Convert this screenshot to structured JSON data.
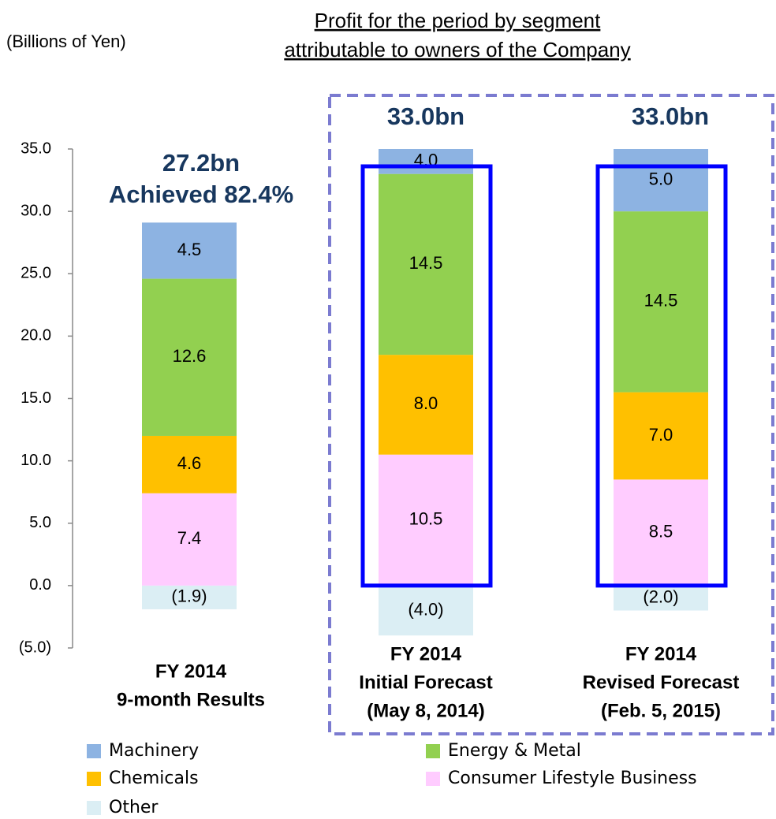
{
  "chart_data": {
    "type": "stacked-bar",
    "title": [
      "Profit for the period by segment",
      "attributable to owners of the Company"
    ],
    "y_axis_label": "(Billions of Yen)",
    "categories": [
      [
        "FY 2014",
        "9-month Results"
      ],
      [
        "FY 2014",
        "Initial Forecast",
        "(May 8, 2014)"
      ],
      [
        "FY 2014",
        "Revised Forecast",
        "(Feb. 5, 2015)"
      ]
    ],
    "series": [
      {
        "name": "Other",
        "color": "#dbeef4",
        "values": [
          -1.9,
          -4.0,
          -2.0
        ],
        "value_labels": [
          "(1.9)",
          "(4.0)",
          "(2.0)"
        ]
      },
      {
        "name": "Consumer Lifestyle Business",
        "color": "#ffccff",
        "values": [
          7.4,
          10.5,
          8.5
        ],
        "value_labels": [
          "7.4",
          "10.5",
          "8.5"
        ]
      },
      {
        "name": "Chemicals",
        "color": "#ffc000",
        "values": [
          4.6,
          8.0,
          7.0
        ],
        "value_labels": [
          "4.6",
          "8.0",
          "7.0"
        ]
      },
      {
        "name": "Energy & Metal",
        "color": "#92d050",
        "values": [
          12.6,
          14.5,
          14.5
        ],
        "value_labels": [
          "12.6",
          "14.5",
          "14.5"
        ]
      },
      {
        "name": "Machinery",
        "color": "#8db3e2",
        "values": [
          4.5,
          4.0,
          5.0
        ],
        "value_labels": [
          "4.5",
          "4.0",
          "5.0"
        ]
      }
    ],
    "annotations": [
      "27.2bn",
      "Achieved 82.4%",
      "33.0bn",
      "33.0bn"
    ],
    "ylim": [
      -5,
      35
    ],
    "yticks": [
      {
        "value": -5,
        "label": "(5.0)"
      },
      {
        "value": 0,
        "label": "0.0"
      },
      {
        "value": 5,
        "label": "5.0"
      },
      {
        "value": 10,
        "label": "10.0"
      },
      {
        "value": 15,
        "label": "15.0"
      },
      {
        "value": 20,
        "label": "20.0"
      },
      {
        "value": 25,
        "label": "25.0"
      },
      {
        "value": 30,
        "label": "30.0"
      },
      {
        "value": 35,
        "label": "35.0"
      }
    ]
  }
}
